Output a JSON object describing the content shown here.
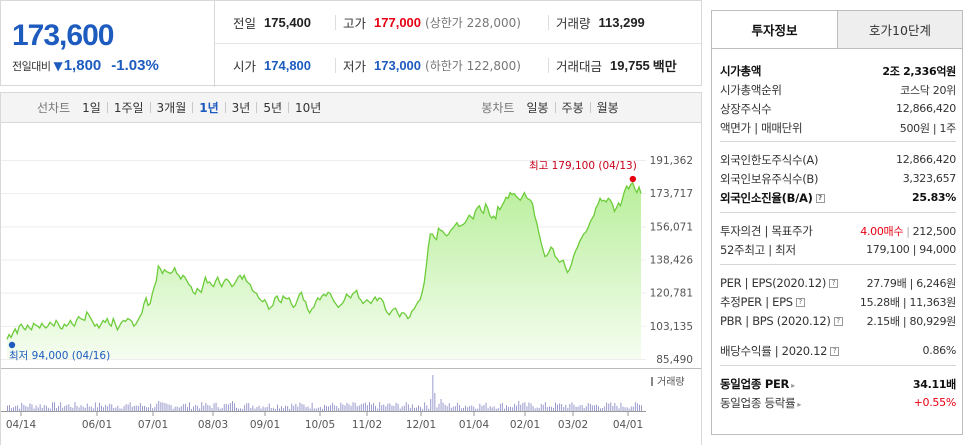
{
  "price": {
    "current": "173,600",
    "change_label": "전일대비",
    "change_arrow": "▼",
    "change": "1,800",
    "change_pct": "-1.03%"
  },
  "info": {
    "prev_label": "전일",
    "prev": "175,400",
    "high_label": "고가",
    "high": "177,000",
    "upper_limit": "(상한가 228,000)",
    "volume_label": "거래량",
    "volume": "113,299",
    "open_label": "시가",
    "open": "174,800",
    "low_label": "저가",
    "low": "173,000",
    "lower_limit": "(하한가 122,800)",
    "amount_label": "거래대금",
    "amount": "19,755",
    "amount_unit": "백만"
  },
  "toolbar": {
    "line_label": "선차트",
    "periods": [
      "1일",
      "1주일",
      "3개월",
      "1년",
      "3년",
      "5년",
      "10년"
    ],
    "active_period": "1년",
    "candle_label": "봉차트",
    "candles": [
      "일봉",
      "주봉",
      "월봉"
    ]
  },
  "chart_data": {
    "type": "area",
    "y_ticks": [
      "191,362",
      "173,717",
      "156,071",
      "138,426",
      "120,781",
      "103,135",
      "85,490"
    ],
    "ylim": [
      85490,
      191362
    ],
    "x_ticks": [
      "04/14",
      "06/01",
      "07/01",
      "08/03",
      "09/01",
      "10/05",
      "11/02",
      "12/01",
      "01/04",
      "02/01",
      "03/02",
      "04/01"
    ],
    "max_annotation": "최고 179,100 (04/13)",
    "min_annotation": "최저 94,000 (04/16)",
    "volume_label": "거래량",
    "series": [
      {
        "values": [
          96000,
          98500,
          97000,
          99500,
          101500,
          99000,
          103000,
          104000,
          102000,
          101000,
          103500,
          102000,
          101000,
          104500,
          103500,
          103000,
          102000,
          104500,
          103000,
          102000,
          103000,
          105000,
          104000,
          103000,
          106000,
          104500,
          102000,
          101500,
          104000,
          103000,
          104000,
          106000,
          104000,
          103000,
          106000,
          108000,
          107000,
          106500,
          106000,
          110500,
          109000,
          107000,
          105000,
          103000,
          104000,
          102000,
          104000,
          106000,
          105000,
          107000,
          104000,
          103000,
          107000,
          104000,
          101000,
          103000,
          105000,
          106000,
          105500,
          107000,
          106500,
          105500,
          103000,
          104000,
          106000,
          108000,
          110000,
          115000,
          118000,
          114000,
          115000,
          120000,
          124000,
          127000,
          135000,
          133500,
          131000,
          133000,
          132000,
          131500,
          131000,
          132000,
          134000,
          131000,
          130000,
          128000,
          130000,
          129000,
          127000,
          125000,
          124000,
          121000,
          120000,
          123000,
          122000,
          121000,
          125000,
          129000,
          126000,
          126500,
          125000,
          124000,
          127000,
          129000,
          126000,
          124000,
          126500,
          128000,
          127500,
          126000,
          124000,
          125000,
          127000,
          129000,
          130000,
          128000,
          130000,
          127000,
          126000,
          125000,
          122000,
          121000,
          120500,
          118000,
          117000,
          116000,
          117000,
          115000,
          112000,
          113000,
          114000,
          118000,
          119000,
          116500,
          115500,
          119000,
          118000,
          117500,
          118000,
          115000,
          113000,
          114000,
          117000,
          120000,
          121000,
          117000,
          116000,
          112000,
          110000,
          112000,
          113000,
          116000,
          118000,
          117000,
          119000,
          120000,
          119000,
          121000,
          120500,
          118000,
          116000,
          114500,
          113000,
          114000,
          115000,
          117000,
          120000,
          119000,
          118000,
          120000,
          121000,
          122000,
          118000,
          117000,
          115000,
          116000,
          117000,
          116000,
          115000,
          117000,
          118500,
          116500,
          118000,
          117500,
          116000,
          112000,
          110000,
          109000,
          111000,
          112000,
          112500,
          110000,
          108000,
          110000,
          110000,
          109000,
          107000,
          108000,
          111000,
          112000,
          114000,
          116000,
          117000,
          121000,
          126000,
          135000,
          145000,
          152000,
          152000,
          150000,
          149000,
          155000,
          154000,
          153500,
          152000,
          151000,
          152000,
          154000,
          155000,
          156500,
          158000,
          156000,
          156500,
          157000,
          158000,
          160000,
          162000,
          161000,
          160000,
          164000,
          166000,
          167000,
          164000,
          163000,
          168000,
          166000,
          162000,
          160500,
          161500,
          160000,
          166500,
          165000,
          167000,
          169000,
          171500,
          171000,
          174000,
          173000,
          173500,
          172000,
          171000,
          170000,
          172000,
          174000,
          171500,
          170500,
          170000,
          168000,
          161500,
          158000,
          153000,
          148000,
          144000,
          140000,
          140500,
          142500,
          145000,
          144000,
          140000,
          139000,
          137000,
          137500,
          138000,
          134500,
          131500,
          133000,
          136000,
          140000,
          143000,
          145000,
          148000,
          150000,
          152000,
          153000,
          155000,
          158000,
          160000,
          162000,
          166000,
          168000,
          171000,
          169500,
          170000,
          169000,
          171000,
          170000,
          168000,
          164000,
          166000,
          168500,
          167000,
          171000,
          175000,
          177500,
          176000,
          178500,
          179100,
          176000,
          174000,
          177000,
          173600
        ]
      }
    ]
  }
}
